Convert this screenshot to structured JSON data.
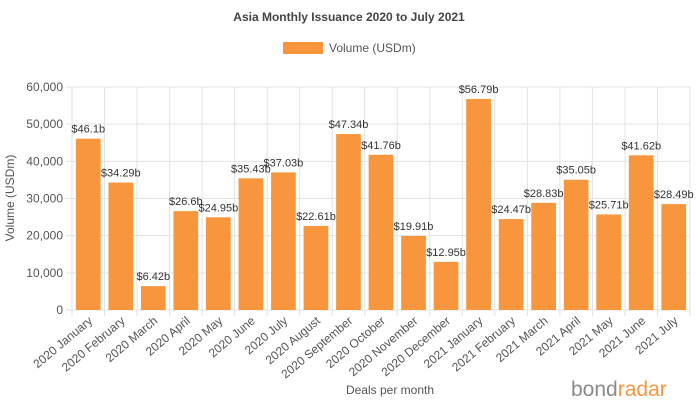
{
  "chart_data": {
    "type": "bar",
    "title": "Asia Monthly Issuance 2020 to July 2021",
    "xlabel": "Deals per month",
    "ylabel": "Volume (USDm)",
    "ylim": [
      0,
      60000
    ],
    "yticks": [
      "0",
      "10,000",
      "20,000",
      "30,000",
      "40,000",
      "50,000",
      "60,000"
    ],
    "ytick_values": [
      0,
      10000,
      20000,
      30000,
      40000,
      50000,
      60000
    ],
    "grid": true,
    "legend": "top-center",
    "categories": [
      "2020 January",
      "2020 February",
      "2020 March",
      "2020 April",
      "2020 May",
      "2020 June",
      "2020 July",
      "2020 August",
      "2020 September",
      "2020 October",
      "2020 November",
      "2020 December",
      "2021 January",
      "2021 February",
      "2021 March",
      "2021 April",
      "2021 May",
      "2021 June",
      "2021 July"
    ],
    "series": [
      {
        "name": "Volume (USDm)",
        "color": "#f7963d",
        "values": [
          46100,
          34290,
          6420,
          26600,
          24950,
          35430,
          37030,
          22610,
          47340,
          41760,
          19910,
          12950,
          56790,
          24470,
          28830,
          35050,
          25710,
          41620,
          28490
        ],
        "labels": [
          "$46.1b",
          "$34.29b",
          "$6.42b",
          "$26.6b",
          "$24.95b",
          "$35.43b",
          "$37.03b",
          "$22.61b",
          "$47.34b",
          "$41.76b",
          "$19.91b",
          "$12.95b",
          "$56.79b",
          "$24.47b",
          "$28.83b",
          "$35.05b",
          "$25.71b",
          "$41.62b",
          "$28.49b"
        ]
      }
    ]
  },
  "branding": {
    "logo_part1": "bond",
    "logo_part2": "radar"
  }
}
